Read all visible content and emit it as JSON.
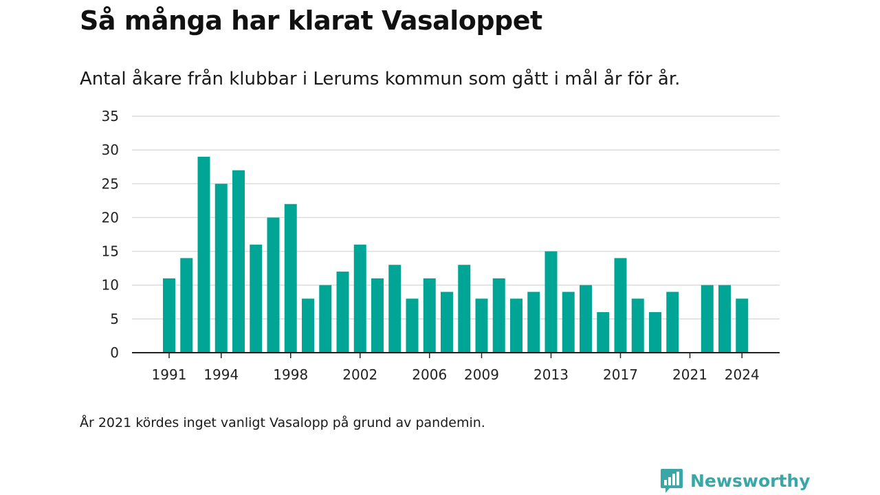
{
  "title": "Så många har klarat Vasaloppet",
  "subtitle": "Antal åkare från klubbar i Lerums kommun som gått i mål år för år.",
  "footnote": "År 2021 kördes inget vanligt Vasalopp på grund av pandemin.",
  "brand": {
    "name": "Newsworthy",
    "color": "#3aa6a6",
    "icon": "bar-chart-speech-bubble-icon"
  },
  "colors": {
    "bar": "#00a596",
    "grid": "#dcdcdc",
    "axis": "#222222"
  },
  "chart_data": {
    "type": "bar",
    "categories": [
      "1991",
      "1992",
      "1993",
      "1994",
      "1995",
      "1996",
      "1997",
      "1998",
      "1999",
      "2000",
      "2001",
      "2002",
      "2003",
      "2004",
      "2005",
      "2006",
      "2007",
      "2008",
      "2009",
      "2010",
      "2011",
      "2012",
      "2013",
      "2014",
      "2015",
      "2016",
      "2017",
      "2018",
      "2019",
      "2020",
      "2021",
      "2022",
      "2023",
      "2024"
    ],
    "values": [
      11,
      14,
      29,
      25,
      27,
      16,
      20,
      22,
      8,
      10,
      12,
      16,
      11,
      13,
      8,
      11,
      9,
      13,
      8,
      11,
      8,
      9,
      15,
      9,
      10,
      6,
      14,
      8,
      6,
      9,
      0,
      10,
      10,
      8
    ],
    "x_tick_labels": [
      "1991",
      "1994",
      "1998",
      "2002",
      "2006",
      "2009",
      "2013",
      "2017",
      "2021",
      "2024"
    ],
    "y_ticks": [
      0,
      5,
      10,
      15,
      20,
      25,
      30,
      35
    ],
    "ylim": [
      0,
      35
    ],
    "title": "Så många har klarat Vasaloppet",
    "subtitle": "Antal åkare från klubbar i Lerums kommun som gått i mål år för år.",
    "xlabel": "",
    "ylabel": "",
    "grid": true,
    "legend": "none"
  }
}
